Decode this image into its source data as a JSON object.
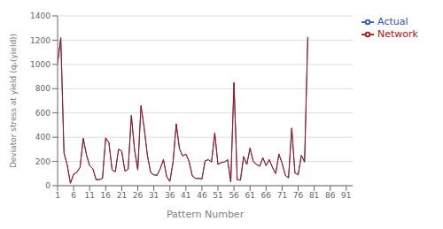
{
  "chart_data": {
    "type": "line",
    "xlabel": "Pattern Number",
    "ylabel": "Deviator stress at yield (qᵤ(yield))",
    "x": [
      1,
      2,
      3,
      4,
      5,
      6,
      7,
      8,
      9,
      10,
      11,
      12,
      13,
      14,
      15,
      16,
      17,
      18,
      19,
      20,
      21,
      22,
      23,
      24,
      25,
      26,
      27,
      28,
      29,
      30,
      31,
      32,
      33,
      34,
      35,
      36,
      37,
      38,
      39,
      40,
      41,
      42,
      43,
      44,
      45,
      46,
      47,
      48,
      49,
      50,
      51,
      52,
      53,
      54,
      55,
      56,
      57,
      58,
      59,
      60,
      61,
      62,
      63,
      64,
      65,
      66,
      67,
      68,
      69,
      70,
      71,
      72,
      73,
      74,
      75,
      76,
      77,
      78,
      79
    ],
    "xlim": [
      1,
      93
    ],
    "xticks": [
      1,
      6,
      11,
      16,
      21,
      26,
      31,
      36,
      41,
      46,
      51,
      56,
      61,
      66,
      71,
      76,
      81,
      86,
      91
    ],
    "ylim": [
      0,
      1400
    ],
    "yticks": [
      0,
      200,
      400,
      600,
      800,
      1000,
      1200,
      1400
    ],
    "grid": true,
    "legend": "right",
    "series": [
      {
        "name": "Actual",
        "color": "#3355AA",
        "values": [
          1010,
          1220,
          270,
          170,
          20,
          95,
          110,
          150,
          390,
          255,
          165,
          140,
          50,
          50,
          60,
          395,
          355,
          130,
          115,
          300,
          285,
          120,
          135,
          580,
          295,
          130,
          660,
          475,
          250,
          110,
          90,
          85,
          140,
          215,
          75,
          35,
          195,
          510,
          305,
          245,
          260,
          200,
          80,
          60,
          60,
          55,
          205,
          215,
          195,
          435,
          175,
          190,
          195,
          215,
          30,
          850,
          50,
          45,
          240,
          175,
          310,
          200,
          175,
          160,
          230,
          165,
          215,
          150,
          100,
          260,
          185,
          85,
          65,
          475,
          105,
          90,
          250,
          195,
          1225
        ]
      },
      {
        "name": "Network",
        "color": "#AA1111",
        "values": [
          1010,
          1220,
          270,
          170,
          20,
          95,
          110,
          150,
          390,
          255,
          165,
          140,
          50,
          50,
          60,
          395,
          355,
          130,
          115,
          300,
          285,
          120,
          135,
          580,
          295,
          130,
          660,
          475,
          250,
          110,
          90,
          85,
          140,
          215,
          75,
          35,
          195,
          510,
          305,
          245,
          260,
          200,
          80,
          60,
          60,
          55,
          205,
          215,
          195,
          435,
          175,
          190,
          195,
          215,
          30,
          850,
          50,
          45,
          240,
          175,
          310,
          200,
          175,
          160,
          230,
          165,
          215,
          150,
          100,
          260,
          185,
          85,
          65,
          475,
          105,
          90,
          250,
          195,
          1225
        ]
      }
    ]
  }
}
